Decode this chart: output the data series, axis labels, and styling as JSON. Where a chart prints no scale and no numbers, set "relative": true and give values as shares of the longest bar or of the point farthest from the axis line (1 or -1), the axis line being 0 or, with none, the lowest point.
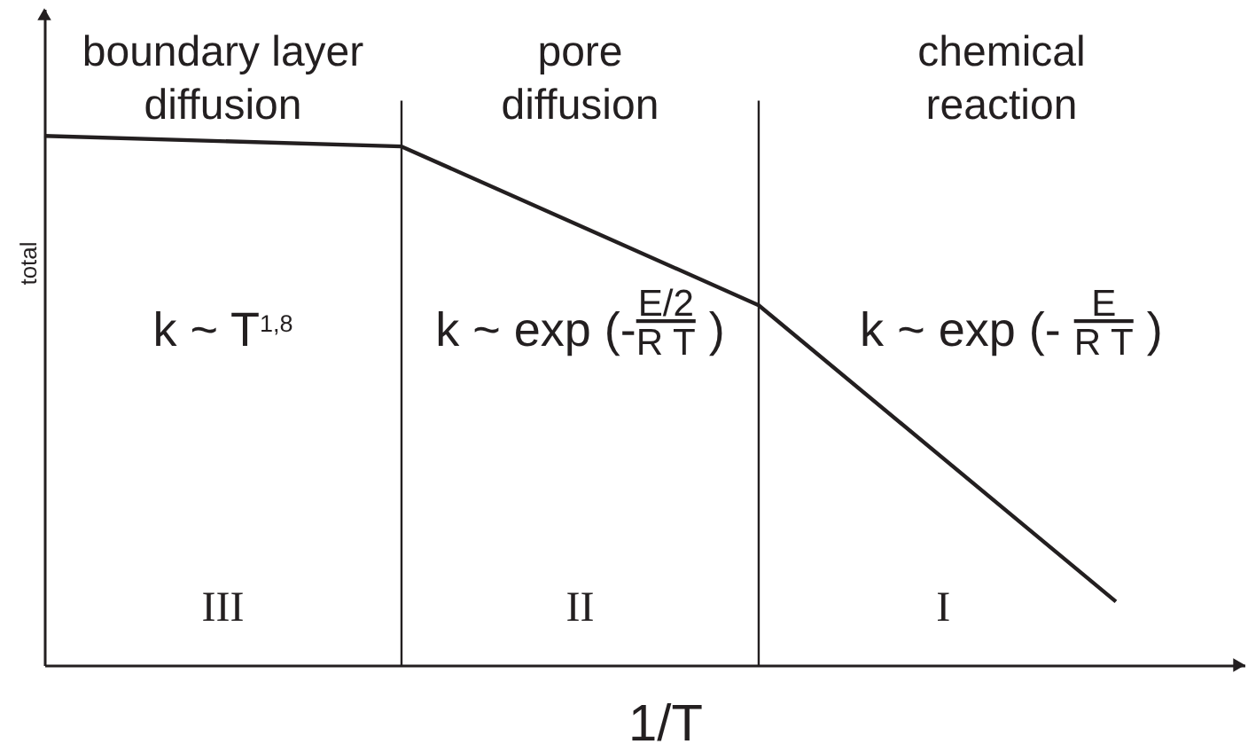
{
  "chart_data": {
    "type": "line",
    "xlabel": "1/T",
    "ylabel": "total",
    "relative": true,
    "categories": [
      null,
      null,
      null,
      null
    ],
    "series": [
      {
        "color": "#231f20",
        "values": [
          1,
          0.98,
          0.68,
          0.12
        ]
      }
    ],
    "annotations": [
      "boundary layer diffusion",
      "pore diffusion",
      "chemical reaction",
      "k ~ T$^{1,8}$",
      "k ~ exp (-$^{E/2}$$_{R T}$ )",
      "k ~ exp (- $^{E}$$_{R T}$ )",
      "III",
      "II",
      "I"
    ]
  }
}
